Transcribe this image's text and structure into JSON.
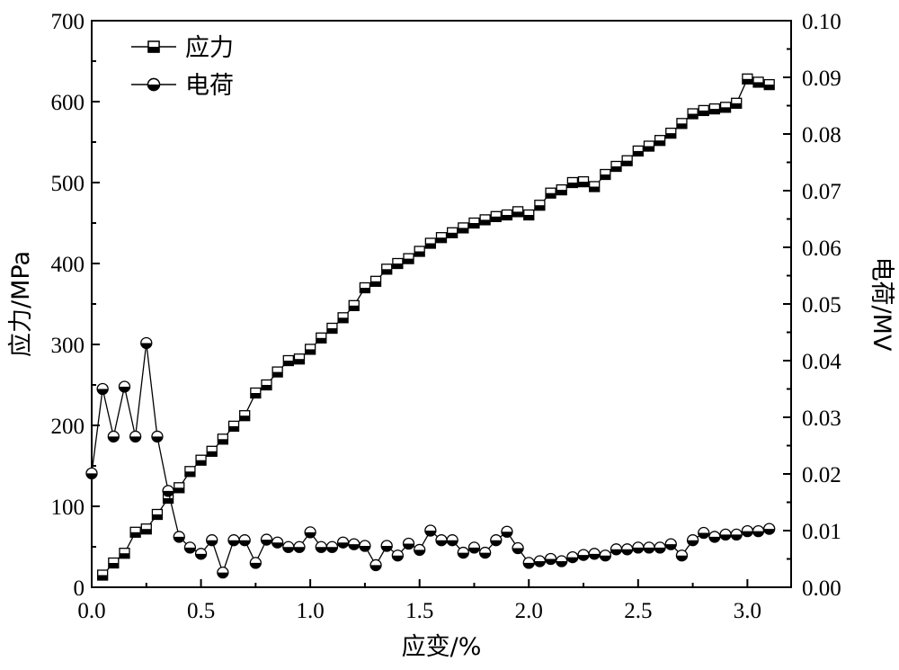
{
  "chart_data": {
    "type": "line",
    "xlabel": "应变/%",
    "ylabel_left": "应力/MPa",
    "ylabel_right": "电荷/MV",
    "xlim": [
      0,
      3.2
    ],
    "ylim_left": [
      0,
      700
    ],
    "ylim_right": [
      0,
      0.1
    ],
    "xticks": [
      "0.0",
      "0.5",
      "1.0",
      "1.5",
      "2.0",
      "2.5",
      "3.0"
    ],
    "yticks_left": [
      "0",
      "100",
      "200",
      "300",
      "400",
      "500",
      "600",
      "700"
    ],
    "yticks_right": [
      "0.00",
      "0.01",
      "0.02",
      "0.03",
      "0.04",
      "0.05",
      "0.06",
      "0.07",
      "0.08",
      "0.09",
      "0.10"
    ],
    "grid": false,
    "legend": "top-left",
    "series": [
      {
        "name": "应力",
        "axis": "left",
        "marker": "half-filled-square",
        "x": [
          0.05,
          0.1,
          0.15,
          0.2,
          0.25,
          0.3,
          0.35,
          0.4,
          0.45,
          0.5,
          0.55,
          0.6,
          0.65,
          0.7,
          0.75,
          0.8,
          0.85,
          0.9,
          0.95,
          1.0,
          1.05,
          1.1,
          1.15,
          1.2,
          1.25,
          1.3,
          1.35,
          1.4,
          1.45,
          1.5,
          1.55,
          1.6,
          1.65,
          1.7,
          1.75,
          1.8,
          1.85,
          1.9,
          1.95,
          2.0,
          2.05,
          2.1,
          2.15,
          2.2,
          2.25,
          2.3,
          2.35,
          2.4,
          2.45,
          2.5,
          2.55,
          2.6,
          2.65,
          2.7,
          2.75,
          2.8,
          2.85,
          2.9,
          2.95,
          3.0,
          3.05,
          3.1
        ],
        "values": [
          15,
          30,
          42,
          68,
          72,
          90,
          110,
          123,
          143,
          157,
          168,
          183,
          199,
          212,
          240,
          250,
          266,
          280,
          282,
          294,
          308,
          320,
          333,
          348,
          370,
          378,
          393,
          400,
          406,
          415,
          425,
          432,
          438,
          444,
          450,
          454,
          458,
          460,
          464,
          460,
          472,
          487,
          491,
          500,
          501,
          495,
          510,
          520,
          527,
          539,
          545,
          552,
          561,
          573,
          585,
          589,
          591,
          593,
          598,
          628,
          624,
          621
        ]
      },
      {
        "name": "电荷",
        "axis": "right",
        "marker": "half-filled-circle",
        "x": [
          0.0,
          0.05,
          0.1,
          0.15,
          0.2,
          0.25,
          0.3,
          0.35,
          0.4,
          0.45,
          0.5,
          0.55,
          0.6,
          0.65,
          0.7,
          0.75,
          0.8,
          0.85,
          0.9,
          0.95,
          1.0,
          1.05,
          1.1,
          1.15,
          1.2,
          1.25,
          1.3,
          1.35,
          1.4,
          1.45,
          1.5,
          1.55,
          1.6,
          1.65,
          1.7,
          1.75,
          1.8,
          1.85,
          1.9,
          1.95,
          2.0,
          2.05,
          2.1,
          2.15,
          2.2,
          2.25,
          2.3,
          2.35,
          2.4,
          2.45,
          2.5,
          2.55,
          2.6,
          2.65,
          2.7,
          2.75,
          2.8,
          2.85,
          2.9,
          2.95,
          3.0,
          3.05,
          3.1
        ],
        "values": [
          0.0201,
          0.035,
          0.0266,
          0.0354,
          0.0266,
          0.0431,
          0.0266,
          0.017,
          0.0089,
          0.007,
          0.0059,
          0.0083,
          0.0026,
          0.0083,
          0.0083,
          0.0043,
          0.0084,
          0.0079,
          0.0071,
          0.0071,
          0.0097,
          0.0071,
          0.0071,
          0.0079,
          0.0076,
          0.0073,
          0.0039,
          0.0073,
          0.0056,
          0.0077,
          0.0066,
          0.01,
          0.0083,
          0.0083,
          0.0061,
          0.007,
          0.0061,
          0.0083,
          0.0098,
          0.0069,
          0.0043,
          0.0046,
          0.005,
          0.0046,
          0.0053,
          0.0057,
          0.0059,
          0.0056,
          0.0067,
          0.0067,
          0.007,
          0.007,
          0.007,
          0.0076,
          0.0056,
          0.0083,
          0.0096,
          0.0089,
          0.0093,
          0.0093,
          0.0099,
          0.0099,
          0.0103
        ]
      }
    ]
  }
}
